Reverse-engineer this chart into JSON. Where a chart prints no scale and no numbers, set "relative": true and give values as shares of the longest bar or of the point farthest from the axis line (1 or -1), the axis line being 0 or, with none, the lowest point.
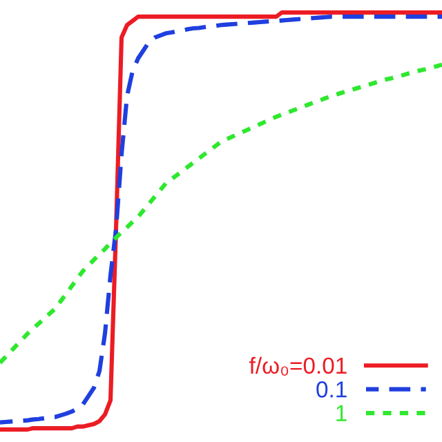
{
  "chart_data": {
    "type": "line",
    "relative": true,
    "legend": "bottom right",
    "categories": [
      null,
      null,
      null,
      null,
      null,
      null,
      null,
      null,
      null,
      null,
      null,
      null,
      null,
      null,
      null,
      null,
      null,
      null,
      null,
      null,
      null,
      null,
      null,
      null,
      null,
      null,
      null,
      null,
      null,
      null,
      null,
      null,
      null,
      null,
      null,
      null,
      null,
      null,
      null,
      null,
      null,
      null,
      null,
      null,
      null,
      null,
      null,
      null,
      null,
      null,
      null,
      null,
      null,
      null,
      null,
      null,
      null,
      null,
      null,
      null,
      null,
      null,
      null,
      null,
      null,
      null,
      null,
      null,
      null,
      null,
      null,
      null,
      null,
      null,
      null,
      null,
      null,
      null,
      null,
      null,
      null
    ],
    "series": [
      {
        "name": "f/ω₀=0.01",
        "color": "#ec1c24",
        "line_style": "solid",
        "values": [
          0,
          0,
          0,
          0,
          0,
          0,
          0.003,
          0.003,
          0.003,
          0.003,
          0.003,
          0.003,
          0.003,
          0.003,
          0.007,
          0.007,
          0.01,
          0.013,
          0.02,
          0.036,
          0.07,
          0.48,
          0.94,
          0.97,
          0.98,
          0.99,
          0.99,
          0.99,
          0.99,
          0.99,
          0.99,
          0.99,
          0.99,
          0.99,
          0.99,
          0.99,
          0.99,
          0.99,
          0.99,
          0.99,
          0.99,
          0.99,
          0.99,
          0.99,
          0.99,
          0.99,
          0.99,
          0.99,
          0.99,
          0.99,
          0.99,
          1,
          1,
          1,
          1,
          1,
          1,
          1,
          1,
          1,
          1,
          1,
          1,
          1,
          1,
          1,
          1,
          1,
          1,
          1,
          1,
          1,
          1,
          1,
          1,
          1,
          1,
          1,
          1,
          1,
          1
        ]
      },
      {
        "name": "0.1",
        "color": "#1f3fdf",
        "line_style": "dashed",
        "values": [
          0.017,
          0.018,
          0.019,
          0.02,
          0.021,
          0.022,
          0.024,
          0.025,
          0.027,
          0.029,
          0.03,
          0.034,
          0.038,
          0.043,
          0.05,
          0.06,
          0.08,
          0.1,
          0.14,
          0.23,
          0.37,
          0.48,
          0.66,
          0.8,
          0.86,
          0.89,
          0.91,
          0.93,
          0.94,
          0.945,
          0.95,
          0.952,
          0.955,
          0.957,
          0.96,
          0.962,
          0.963,
          0.965,
          0.967,
          0.968,
          0.97,
          0.971,
          0.972,
          0.973,
          0.974,
          0.975,
          0.976,
          0.977,
          0.978,
          0.979,
          0.98,
          0.981,
          0.982,
          0.983,
          0.984,
          0.985,
          0.986,
          0.987,
          0.988,
          0.989,
          0.99,
          0.99,
          0.99,
          0.99,
          0.99,
          0.99,
          0.99,
          0.99,
          0.99,
          0.99,
          0.99,
          0.99,
          0.99,
          0.99,
          0.99,
          0.99,
          0.99,
          0.99,
          0.99,
          0.99,
          0.99
        ]
      },
      {
        "name": "1",
        "color": "#2ee82e",
        "line_style": "dotted",
        "values": [
          0.16,
          0.174,
          0.188,
          0.202,
          0.216,
          0.23,
          0.242,
          0.254,
          0.266,
          0.278,
          0.29,
          0.308,
          0.326,
          0.344,
          0.362,
          0.38,
          0.393,
          0.407,
          0.42,
          0.433,
          0.447,
          0.46,
          0.473,
          0.485,
          0.498,
          0.51,
          0.526,
          0.542,
          0.558,
          0.574,
          0.59,
          0.6,
          0.61,
          0.62,
          0.63,
          0.64,
          0.65,
          0.66,
          0.67,
          0.68,
          0.69,
          0.696,
          0.702,
          0.708,
          0.714,
          0.72,
          0.726,
          0.732,
          0.738,
          0.744,
          0.75,
          0.755,
          0.76,
          0.765,
          0.77,
          0.775,
          0.78,
          0.785,
          0.79,
          0.795,
          0.8,
          0.804,
          0.808,
          0.812,
          0.816,
          0.82,
          0.824,
          0.828,
          0.832,
          0.836,
          0.84,
          0.843,
          0.847,
          0.85,
          0.854,
          0.857,
          0.861,
          0.864,
          0.868,
          0.871,
          0.875
        ]
      }
    ]
  }
}
